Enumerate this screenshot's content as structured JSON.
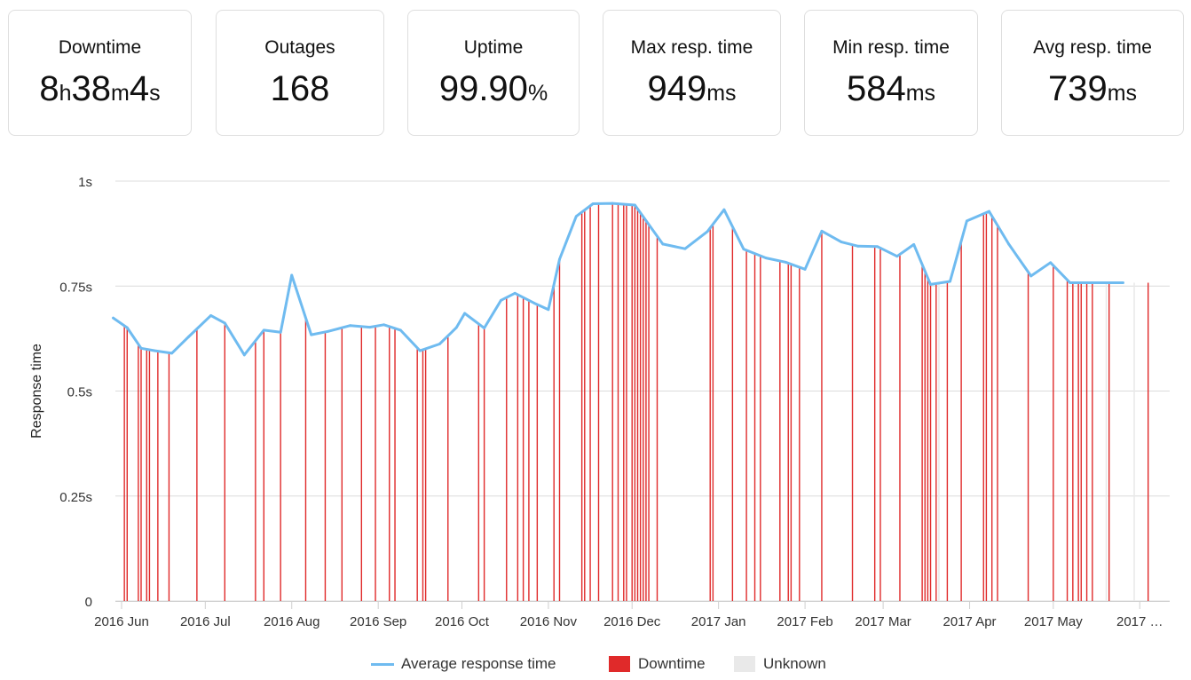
{
  "stats": [
    {
      "label": "Downtime",
      "parts": [
        [
          "8",
          ""
        ],
        [
          "h",
          "u"
        ],
        [
          "38",
          ""
        ],
        [
          "m",
          "u"
        ],
        [
          "4",
          ""
        ],
        [
          "s",
          "u"
        ]
      ]
    },
    {
      "label": "Outages",
      "parts": [
        [
          "168",
          ""
        ]
      ]
    },
    {
      "label": "Uptime",
      "parts": [
        [
          "99.90",
          ""
        ],
        [
          "%",
          "u"
        ]
      ]
    },
    {
      "label": "Max resp. time",
      "parts": [
        [
          "949",
          ""
        ],
        [
          "ms",
          "u"
        ]
      ]
    },
    {
      "label": "Min resp. time",
      "parts": [
        [
          "584",
          ""
        ],
        [
          "ms",
          "u"
        ]
      ]
    },
    {
      "label": "Avg resp. time",
      "parts": [
        [
          "739",
          ""
        ],
        [
          "ms",
          "u"
        ]
      ]
    }
  ],
  "colors": {
    "line": "#6fbbf0",
    "downtime": "#e02a2a",
    "unknown": "#e9e9e9",
    "grid": "#dcdcdc",
    "text": "#333333"
  },
  "legend": {
    "line_label": "Average response time",
    "downtime_label": "Downtime",
    "unknown_label": "Unknown"
  },
  "chart_data": {
    "type": "line",
    "ylabel": "Response time",
    "ylim": [
      0,
      1
    ],
    "y_ticks": [
      0,
      0.25,
      0.5,
      0.75,
      1
    ],
    "y_tick_labels": [
      "0",
      "0.25s",
      "0.5s",
      "0.75s",
      "1s"
    ],
    "x_range": [
      "2016-06-01",
      "2017-06-06"
    ],
    "x_ticks": [
      "2016-06-01",
      "2016-07-01",
      "2016-08-01",
      "2016-09-01",
      "2016-10-01",
      "2016-11-01",
      "2016-12-01",
      "2017-01-01",
      "2017-02-01",
      "2017-03-01",
      "2017-04-01",
      "2017-05-01",
      "2017-06-01"
    ],
    "x_tick_labels": [
      "2016 Jun",
      "2016 Jul",
      "2016 Aug",
      "2016 Sep",
      "2016 Oct",
      "2016 Nov",
      "2016 Dec",
      "2017 Jan",
      "2017 Feb",
      "2017 Mar",
      "2017 Apr",
      "2017 May",
      "2017 …"
    ],
    "grid": true,
    "legend_position": "bottom",
    "series": [
      {
        "name": "Average response time",
        "x": [
          "2016-05-29",
          "2016-06-03",
          "2016-06-08",
          "2016-06-13",
          "2016-06-19",
          "2016-06-25",
          "2016-07-03",
          "2016-07-08",
          "2016-07-15",
          "2016-07-22",
          "2016-07-28",
          "2016-08-01",
          "2016-08-08",
          "2016-08-14",
          "2016-08-22",
          "2016-08-29",
          "2016-09-03",
          "2016-09-09",
          "2016-09-16",
          "2016-09-23",
          "2016-09-29",
          "2016-10-02",
          "2016-10-09",
          "2016-10-15",
          "2016-10-20",
          "2016-10-27",
          "2016-11-01",
          "2016-11-05",
          "2016-11-11",
          "2016-11-17",
          "2016-11-24",
          "2016-12-02",
          "2016-12-12",
          "2016-12-20",
          "2016-12-28",
          "2017-01-03",
          "2017-01-10",
          "2017-01-18",
          "2017-01-25",
          "2017-02-01",
          "2017-02-07",
          "2017-02-14",
          "2017-02-20",
          "2017-02-27",
          "2017-03-06",
          "2017-03-12",
          "2017-03-18",
          "2017-03-25",
          "2017-03-31",
          "2017-04-08",
          "2017-04-15",
          "2017-04-23",
          "2017-04-30",
          "2017-05-07",
          "2017-05-14",
          "2017-05-21",
          "2017-05-26"
        ],
        "values": [
          0.674,
          0.651,
          0.602,
          0.596,
          0.59,
          0.629,
          0.68,
          0.662,
          0.586,
          0.645,
          0.64,
          0.776,
          0.634,
          0.642,
          0.656,
          0.652,
          0.658,
          0.645,
          0.596,
          0.612,
          0.651,
          0.685,
          0.65,
          0.716,
          0.733,
          0.709,
          0.694,
          0.814,
          0.916,
          0.946,
          0.947,
          0.943,
          0.85,
          0.839,
          0.88,
          0.932,
          0.838,
          0.817,
          0.807,
          0.79,
          0.881,
          0.855,
          0.845,
          0.844,
          0.821,
          0.849,
          0.754,
          0.761,
          0.905,
          0.928,
          0.85,
          0.774,
          0.806,
          0.758,
          0.758,
          0.758,
          0.758
        ]
      }
    ],
    "downtime_events": [
      "2016-06-02",
      "2016-06-03",
      "2016-06-07",
      "2016-06-08",
      "2016-06-10",
      "2016-06-11",
      "2016-06-14",
      "2016-06-18",
      "2016-06-28",
      "2016-07-08",
      "2016-07-19",
      "2016-07-22",
      "2016-07-28",
      "2016-08-06",
      "2016-08-13",
      "2016-08-19",
      "2016-08-26",
      "2016-08-31",
      "2016-09-05",
      "2016-09-07",
      "2016-09-15",
      "2016-09-17",
      "2016-09-18",
      "2016-09-26",
      "2016-10-07",
      "2016-10-09",
      "2016-10-17",
      "2016-10-21",
      "2016-10-23",
      "2016-10-25",
      "2016-10-28",
      "2016-11-03",
      "2016-11-05",
      "2016-11-13",
      "2016-11-14",
      "2016-11-16",
      "2016-11-19",
      "2016-11-24",
      "2016-11-26",
      "2016-11-28",
      "2016-11-29",
      "2016-12-01",
      "2016-12-02",
      "2016-12-03",
      "2016-12-04",
      "2016-12-05",
      "2016-12-06",
      "2016-12-07",
      "2016-12-10",
      "2016-12-29",
      "2016-12-30",
      "2017-01-06",
      "2017-01-11",
      "2017-01-14",
      "2017-01-16",
      "2017-01-23",
      "2017-01-26",
      "2017-01-27",
      "2017-01-30",
      "2017-02-07",
      "2017-02-18",
      "2017-02-26",
      "2017-02-28",
      "2017-03-07",
      "2017-03-15",
      "2017-03-16",
      "2017-03-17",
      "2017-03-18",
      "2017-03-20",
      "2017-03-24",
      "2017-03-29",
      "2017-04-06",
      "2017-04-07",
      "2017-04-09",
      "2017-04-11",
      "2017-04-22",
      "2017-05-01",
      "2017-05-06",
      "2017-05-08",
      "2017-05-10",
      "2017-05-11",
      "2017-05-13",
      "2017-05-15",
      "2017-05-21",
      "2017-06-04"
    ],
    "unknown_events": [
      "2017-03-21",
      "2017-05-20",
      "2017-05-30"
    ]
  }
}
